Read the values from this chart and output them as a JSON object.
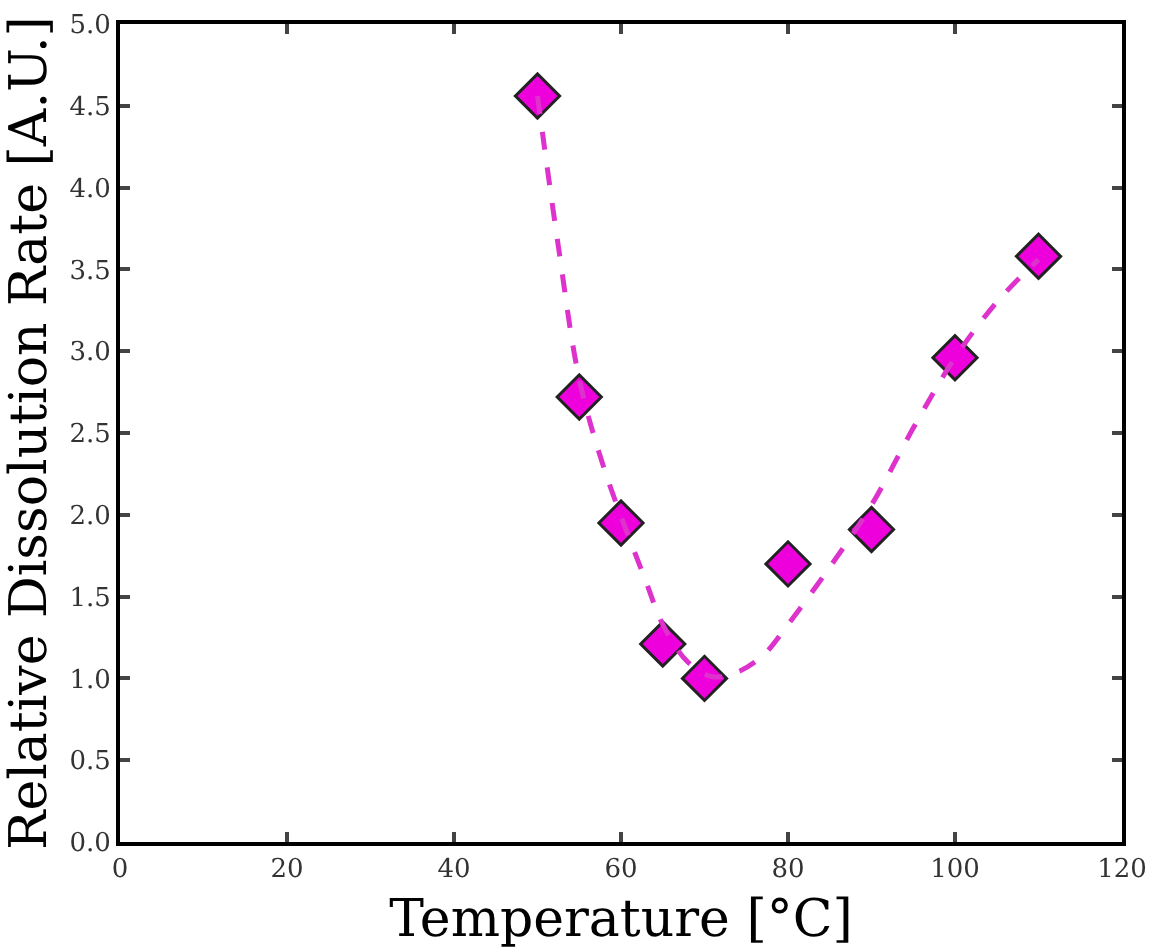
{
  "chart_data": {
    "type": "scatter",
    "xlabel": "Temperature [°C]",
    "ylabel": "Relative Dissolution Rate [A.U.]",
    "xlim": [
      0,
      120
    ],
    "xticks": [
      0,
      20,
      40,
      60,
      80,
      100,
      120
    ],
    "ylim": [
      0,
      5
    ],
    "yticks": [
      {
        "value": 0,
        "label": "0.0"
      },
      {
        "value": 0.5,
        "label": "0.5"
      },
      {
        "value": 1,
        "label": "1.0"
      },
      {
        "value": 1.5,
        "label": "1.5"
      },
      {
        "value": 2,
        "label": "2.0"
      },
      {
        "value": 2.5,
        "label": "2.5"
      },
      {
        "value": 3,
        "label": "3.0"
      },
      {
        "value": 3.5,
        "label": "3.5"
      },
      {
        "value": 4,
        "label": "4.0"
      },
      {
        "value": 4.5,
        "label": "4.5"
      },
      {
        "value": 5,
        "label": "5.0"
      }
    ],
    "grid": false,
    "series": [
      {
        "type": "line",
        "color": "#dd33cc",
        "line_style": "dashed",
        "marker": "none",
        "x": [
          50,
          52.5,
          55,
          58,
          63,
          65,
          68,
          71,
          74,
          77,
          80,
          85,
          90,
          95,
          100,
          105,
          110
        ],
        "values": [
          4.56,
          3.64,
          2.83,
          2.28,
          1.59,
          1.33,
          1.1,
          1.01,
          1.04,
          1.14,
          1.33,
          1.68,
          2.06,
          2.53,
          2.96,
          3.3,
          3.56
        ]
      },
      {
        "type": "scatter",
        "color": "#ee00dd",
        "marker": "diamond",
        "x": [
          50,
          55,
          60,
          65,
          70,
          80,
          90,
          100,
          110
        ],
        "values": [
          4.56,
          2.72,
          1.95,
          1.21,
          1.0,
          1.7,
          1.91,
          2.96,
          3.58
        ]
      }
    ]
  }
}
